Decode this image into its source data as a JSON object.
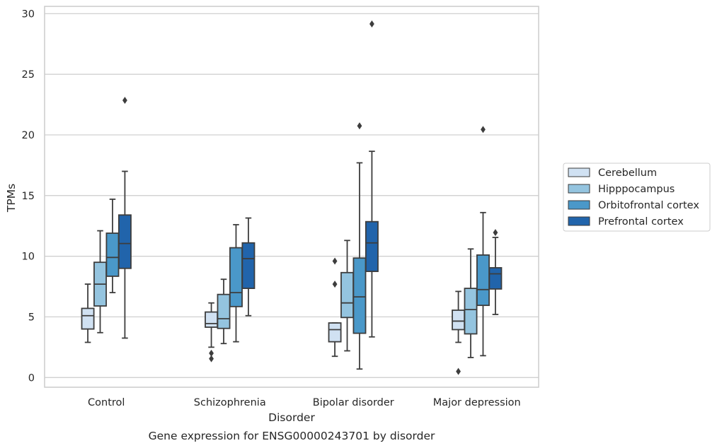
{
  "chart_data": {
    "type": "box",
    "xlabel": "Disorder",
    "ylabel": "TPMs",
    "caption": "Gene expression for ENSG00000243701 by disorder",
    "ylim": [
      -0.8,
      30.6
    ],
    "yticks": [
      0,
      5,
      10,
      15,
      20,
      25,
      30
    ],
    "grid": "horizontal",
    "legend_position": "right",
    "categories": [
      "Control",
      "Schizophrenia",
      "Bipolar disorder",
      "Major depression"
    ],
    "series": [
      {
        "name": "Cerebellum",
        "color": "#d0e1f2",
        "boxes": [
          {
            "whislo": 2.9,
            "q1": 4.0,
            "med": 5.1,
            "q3": 5.7,
            "whishi": 7.7,
            "fliers": []
          },
          {
            "whislo": 2.5,
            "q1": 4.15,
            "med": 4.45,
            "q3": 5.4,
            "whishi": 6.15,
            "fliers": [
              2.0,
              1.55
            ]
          },
          {
            "whislo": 1.75,
            "q1": 2.95,
            "med": 3.95,
            "q3": 4.5,
            "whishi": 4.5,
            "fliers": [
              9.6,
              7.7
            ]
          },
          {
            "whislo": 2.9,
            "q1": 3.95,
            "med": 4.65,
            "q3": 5.55,
            "whishi": 7.1,
            "fliers": [
              0.5
            ]
          }
        ]
      },
      {
        "name": "Hipppocampus",
        "color": "#94c4df",
        "boxes": [
          {
            "whislo": 3.7,
            "q1": 5.9,
            "med": 7.7,
            "q3": 9.5,
            "whishi": 12.1,
            "fliers": []
          },
          {
            "whislo": 2.8,
            "q1": 4.05,
            "med": 4.85,
            "q3": 6.85,
            "whishi": 8.1,
            "fliers": []
          },
          {
            "whislo": 2.2,
            "q1": 4.95,
            "med": 6.15,
            "q3": 8.65,
            "whishi": 11.3,
            "fliers": []
          },
          {
            "whislo": 1.65,
            "q1": 3.6,
            "med": 5.6,
            "q3": 7.35,
            "whishi": 10.6,
            "fliers": []
          }
        ]
      },
      {
        "name": "Orbitofrontal cortex",
        "color": "#4a98c9",
        "boxes": [
          {
            "whislo": 7.0,
            "q1": 8.35,
            "med": 9.9,
            "q3": 11.9,
            "whishi": 14.7,
            "fliers": []
          },
          {
            "whislo": 2.95,
            "q1": 5.85,
            "med": 7.0,
            "q3": 10.7,
            "whishi": 12.6,
            "fliers": []
          },
          {
            "whislo": 0.7,
            "q1": 3.65,
            "med": 6.65,
            "q3": 9.85,
            "whishi": 17.7,
            "fliers": [
              20.75
            ]
          },
          {
            "whislo": 1.8,
            "q1": 5.95,
            "med": 7.25,
            "q3": 10.1,
            "whishi": 13.6,
            "fliers": [
              20.45
            ]
          }
        ]
      },
      {
        "name": "Prefrontal cortex",
        "color": "#2164ab",
        "boxes": [
          {
            "whislo": 3.25,
            "q1": 9.0,
            "med": 11.05,
            "q3": 13.4,
            "whishi": 17.0,
            "fliers": [
              22.85
            ]
          },
          {
            "whislo": 5.1,
            "q1": 7.35,
            "med": 9.8,
            "q3": 11.1,
            "whishi": 13.15,
            "fliers": []
          },
          {
            "whislo": 3.35,
            "q1": 8.75,
            "med": 11.1,
            "q3": 12.85,
            "whishi": 18.65,
            "fliers": [
              29.15
            ]
          },
          {
            "whislo": 5.2,
            "q1": 7.3,
            "med": 8.55,
            "q3": 9.05,
            "whishi": 11.55,
            "fliers": [
              11.95
            ]
          }
        ]
      }
    ]
  }
}
